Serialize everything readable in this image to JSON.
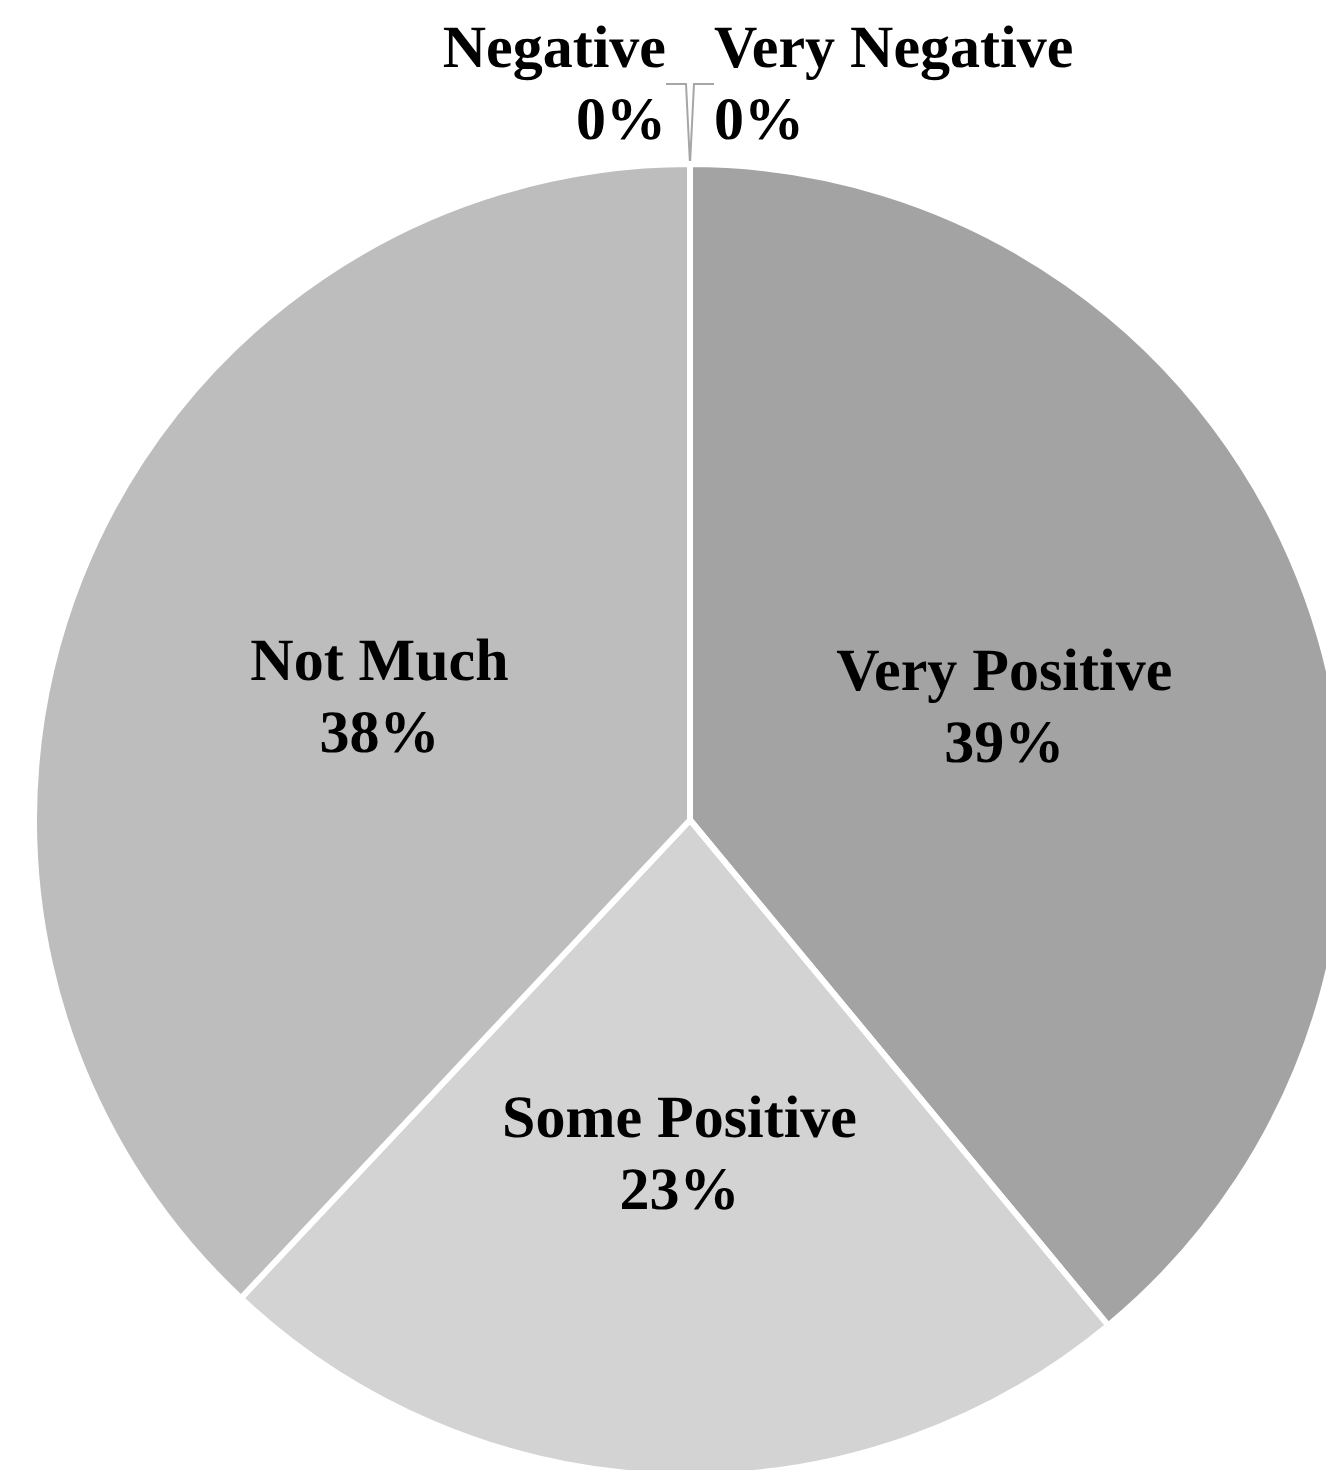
{
  "chart_data": {
    "type": "pie",
    "categories": [
      "Very Positive",
      "Some Positive",
      "Not Much",
      "Negative",
      "Very Negative"
    ],
    "values": [
      39,
      23,
      38,
      0,
      0
    ],
    "colors": [
      "#a3a3a3",
      "#d3d3d3",
      "#bdbdbd",
      "#c8c8c8",
      "#9a9a9a"
    ],
    "value_labels": [
      "39%",
      "23%",
      "38%",
      "0%",
      "0%"
    ],
    "legend": false
  }
}
